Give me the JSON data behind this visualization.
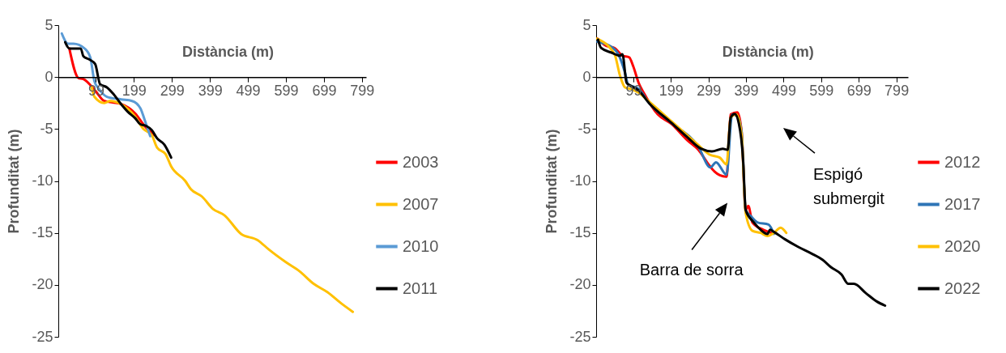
{
  "chart_data": [
    {
      "type": "line",
      "xlabel": "Distància (m)",
      "ylabel": "Profunditat (m)",
      "xlim": [
        0,
        810
      ],
      "ylim": [
        -25,
        5
      ],
      "xticks": [
        99,
        199,
        299,
        399,
        499,
        599,
        699,
        799
      ],
      "yticks": [
        5,
        0,
        -5,
        -10,
        -15,
        -20,
        -25
      ],
      "grid": false,
      "legend": "right",
      "series": [
        {
          "name": "2003",
          "color": "#ff0000",
          "x": [
            29,
            53,
            66,
            99,
            121,
            143,
            165,
            202,
            227,
            253
          ],
          "values": [
            2.75,
            -0.1,
            -0.2,
            -1.4,
            -2.3,
            -2.45,
            -2.6,
            -3.5,
            -4.7,
            -5.6
          ]
        },
        {
          "name": "2007",
          "color": "#ffc000",
          "x": [
            88,
            95,
            121,
            136,
            165,
            202,
            224,
            246,
            260,
            282,
            297,
            334,
            349,
            378,
            407,
            437,
            481,
            525,
            554,
            598,
            635,
            672,
            708,
            745,
            775
          ],
          "values": [
            -1,
            -1.9,
            -2.5,
            -2.3,
            -2.6,
            -3.8,
            -5,
            -5.6,
            -6.8,
            -7.4,
            -8.6,
            -10,
            -10.8,
            -11.5,
            -12.7,
            -13.3,
            -15.1,
            -15.7,
            -16.6,
            -17.8,
            -18.7,
            -19.9,
            -20.7,
            -21.8,
            -22.6
          ]
        },
        {
          "name": "2010",
          "color": "#5b9bd5",
          "x": [
            9,
            26,
            40,
            69,
            84,
            95,
            106,
            128,
            165,
            194,
            216,
            227,
            242
          ],
          "values": [
            4.2,
            3.2,
            3.2,
            2.75,
            1.9,
            -0.4,
            -1.1,
            -1.9,
            -2.15,
            -2.3,
            -3,
            -4.1,
            -5.7
          ]
        },
        {
          "name": "2011",
          "color": "#000000",
          "x": [
            18,
            29,
            59,
            66,
            81,
            97,
            110,
            128,
            143,
            165,
            183,
            202,
            216,
            231,
            246,
            260,
            279,
            297
          ],
          "values": [
            3.35,
            2.75,
            2.75,
            2,
            1.7,
            1.25,
            -0.7,
            -1,
            -1.55,
            -2.6,
            -3.35,
            -3.95,
            -4.55,
            -4.7,
            -5.1,
            -5.9,
            -6.5,
            -7.75
          ]
        }
      ]
    },
    {
      "type": "line",
      "xlabel": "Distància (m)",
      "ylabel": "Profunditat (m)",
      "xlim": [
        0,
        830
      ],
      "ylim": [
        -25,
        5
      ],
      "xticks": [
        99,
        199,
        299,
        399,
        499,
        599,
        699,
        799
      ],
      "yticks": [
        5,
        0,
        -5,
        -10,
        -15,
        -20,
        -25
      ],
      "grid": false,
      "legend": "right",
      "annotations": [
        "Barra de sorra",
        "Espigó submergit"
      ],
      "series": [
        {
          "name": "2012",
          "color": "#ff0000",
          "x": [
            3,
            27,
            49,
            70,
            88,
            99,
            113,
            128,
            164,
            200,
            243,
            272,
            301,
            315,
            329,
            347,
            358,
            376,
            387,
            398,
            405,
            416,
            445,
            467
          ],
          "values": [
            3.7,
            3.0,
            2.8,
            2.05,
            1.9,
            1.0,
            -0.55,
            -1.6,
            -3.6,
            -4.5,
            -6.1,
            -7.0,
            -8.5,
            -9.1,
            -9.45,
            -9.6,
            -3.6,
            -3.4,
            -5.2,
            -12.8,
            -12.4,
            -14.0,
            -14.7,
            -15.0
          ]
        },
        {
          "name": "2017",
          "color": "#2e75b6",
          "x": [
            3,
            45,
            59,
            77,
            85,
            113,
            142,
            200,
            272,
            304,
            319,
            347,
            362,
            376,
            387,
            398,
            412,
            430,
            459,
            473
          ],
          "values": [
            3.4,
            2.8,
            2.2,
            0.4,
            -0.7,
            -1.15,
            -2.55,
            -4.4,
            -6.7,
            -8.7,
            -8.2,
            -9.4,
            -3.6,
            -3.8,
            -5.2,
            -12.8,
            -13.4,
            -14.0,
            -14.2,
            -15.1
          ]
        },
        {
          "name": "2020",
          "color": "#ffc000",
          "x": [
            1,
            49,
            63,
            77,
            92,
            113,
            142,
            200,
            272,
            301,
            329,
            347,
            358,
            373,
            387,
            398,
            416,
            438,
            456,
            473,
            491,
            506
          ],
          "values": [
            3.7,
            2.2,
            0.2,
            -1.0,
            -1.15,
            -1.5,
            -2.4,
            -4.25,
            -6.55,
            -7.45,
            -7.75,
            -8.4,
            -3.9,
            -3.6,
            -5.5,
            -13.1,
            -14.8,
            -15.0,
            -15.3,
            -15.0,
            -14.5,
            -15.0
          ]
        },
        {
          "name": "2022",
          "color": "#000000",
          "x": [
            5,
            13,
            41,
            63,
            70,
            81,
            92,
            113,
            142,
            200,
            243,
            279,
            308,
            337,
            350,
            358,
            369,
            380,
            391,
            398,
            420,
            438,
            456,
            463,
            473,
            502,
            538,
            574,
            603,
            625,
            653,
            671,
            686,
            718,
            747,
            769
          ],
          "values": [
            3.6,
            2.8,
            2.35,
            2.05,
            2.2,
            -0.55,
            -0.85,
            -1.3,
            -2.55,
            -4.4,
            -5.8,
            -6.9,
            -7.15,
            -6.9,
            -7.0,
            -3.9,
            -3.55,
            -4.5,
            -7.9,
            -12.8,
            -14.0,
            -14.7,
            -15.1,
            -14.7,
            -14.9,
            -15.6,
            -16.35,
            -17.0,
            -17.6,
            -18.3,
            -19.0,
            -19.9,
            -19.9,
            -20.8,
            -21.6,
            -22.0
          ]
        }
      ]
    }
  ]
}
